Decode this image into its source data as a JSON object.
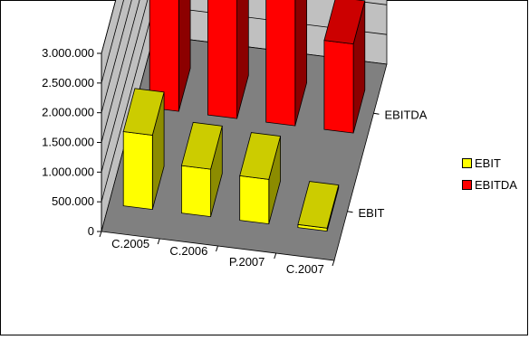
{
  "chart_data": {
    "type": "bar",
    "subtype": "3d-column",
    "categories": [
      "C.2005",
      "C.2006",
      "P.2007",
      "C.2007"
    ],
    "series": [
      {
        "name": "EBIT",
        "color": "#ffff00",
        "values": [
          1250000,
          800000,
          750000,
          50000
        ]
      },
      {
        "name": "EBITDA",
        "color": "#ff0000",
        "values": [
          2650000,
          2400000,
          2450000,
          1500000
        ]
      }
    ],
    "ylim": [
      0,
      3000000
    ],
    "yticks": [
      "0",
      "500.000",
      "1.000.000",
      "1.500.000",
      "2.000.000",
      "2.500.000",
      "3.000.000"
    ],
    "grid": true,
    "legend_position": "right"
  }
}
